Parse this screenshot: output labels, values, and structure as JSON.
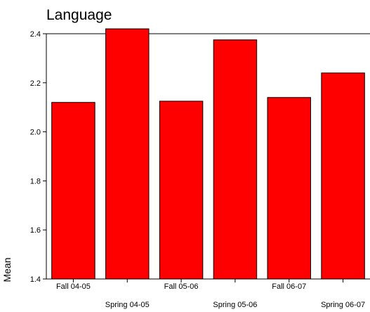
{
  "chart_data": {
    "type": "bar",
    "title": "Language",
    "xlabel": "",
    "ylabel": "Mean",
    "categories": [
      "Fall 04-05",
      "Spring 04-05",
      "Fall 05-06",
      "Spring 05-06",
      "Fall 06-07",
      "Spring 06-07"
    ],
    "values": [
      2.12,
      2.42,
      2.125,
      2.375,
      2.14,
      2.24
    ],
    "ylim": [
      1.4,
      2.4
    ],
    "yticks": [
      "1.4",
      "1.6",
      "1.8",
      "2.0",
      "2.2",
      "2.4"
    ],
    "grid": "horizontal-at-top",
    "legend": "none",
    "bar_color": "#ff0000",
    "bar_edge_color": "#000000",
    "background": "#ffffff"
  }
}
